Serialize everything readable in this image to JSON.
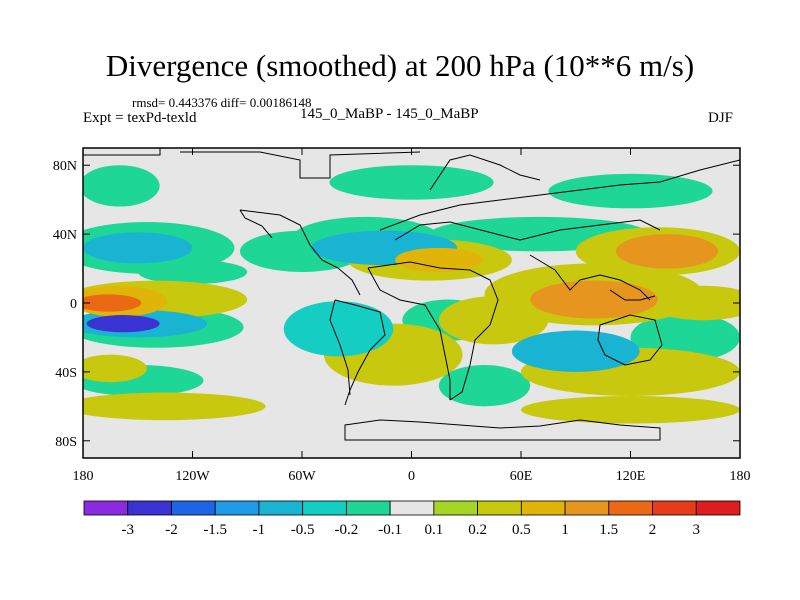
{
  "header": {
    "title": "Divergence (smoothed) at 200 hPa (10**6 m/s)",
    "rmsd_line": "rmsd= 0.443376 diff= 0.00186148",
    "expt_line": "Expt = texPd-texld",
    "experiment_names": "145_0_MaBP - 145_0_MaBP",
    "season": "DJF"
  },
  "chart_data": {
    "type": "heatmap",
    "title": "Divergence (smoothed) at 200 hPa (10**6 m/s)",
    "xlabel": "",
    "ylabel": "",
    "xlim": [
      -180,
      180
    ],
    "ylim": [
      -90,
      90
    ],
    "x_ticks": [
      {
        "value": -180,
        "label": "180"
      },
      {
        "value": -120,
        "label": "120W"
      },
      {
        "value": -60,
        "label": "60W"
      },
      {
        "value": 0,
        "label": "0"
      },
      {
        "value": 60,
        "label": "60E"
      },
      {
        "value": 120,
        "label": "120E"
      },
      {
        "value": 180,
        "label": "180"
      }
    ],
    "y_ticks": [
      {
        "value": 80,
        "label": "80N"
      },
      {
        "value": 40,
        "label": "40N"
      },
      {
        "value": 0,
        "label": "0"
      },
      {
        "value": -40,
        "label": "40S"
      },
      {
        "value": -80,
        "label": "80S"
      }
    ],
    "colorbar": {
      "levels": [
        "-3",
        "-2",
        "-1.5",
        "-1",
        "-0.5",
        "-0.2",
        "-0.1",
        "0.1",
        "0.2",
        "0.5",
        "1",
        "1.5",
        "2",
        "3"
      ],
      "colors": [
        "#8a2be2",
        "#3a32d2",
        "#1e64e6",
        "#1e9be6",
        "#19b4d2",
        "#14cdc3",
        "#1ed796",
        "#e6e6e6",
        "#a5d623",
        "#c8c80f",
        "#e1b40a",
        "#e6961e",
        "#eb6914",
        "#e63c19",
        "#dc1e1e"
      ]
    },
    "regions": [
      {
        "lon": -166,
        "lat": 0,
        "rx": 18,
        "ry": 5,
        "value": 1.6
      },
      {
        "lon": -160,
        "lat": 1,
        "rx": 26,
        "ry": 9,
        "value": 1.0
      },
      {
        "lon": -140,
        "lat": 2,
        "rx": 50,
        "ry": 11,
        "value": 0.3
      },
      {
        "lon": -158,
        "lat": -12,
        "rx": 20,
        "ry": 5,
        "value": -2.2
      },
      {
        "lon": -150,
        "lat": -12,
        "rx": 38,
        "ry": 8,
        "value": -0.8
      },
      {
        "lon": -140,
        "lat": -14,
        "rx": 48,
        "ry": 12,
        "value": -0.15
      },
      {
        "lon": -150,
        "lat": 32,
        "rx": 30,
        "ry": 9,
        "value": -0.9
      },
      {
        "lon": -145,
        "lat": 32,
        "rx": 48,
        "ry": 15,
        "value": -0.15
      },
      {
        "lon": -160,
        "lat": 68,
        "rx": 22,
        "ry": 12,
        "value": -0.15
      },
      {
        "lon": -165,
        "lat": -38,
        "rx": 20,
        "ry": 8,
        "value": 0.3
      },
      {
        "lon": -150,
        "lat": -45,
        "rx": 36,
        "ry": 9,
        "value": -0.15
      },
      {
        "lon": -135,
        "lat": -60,
        "rx": 55,
        "ry": 8,
        "value": 0.3
      },
      {
        "lon": -120,
        "lat": 18,
        "rx": 30,
        "ry": 7,
        "value": -0.15
      },
      {
        "lon": -60,
        "lat": 30,
        "rx": 34,
        "ry": 12,
        "value": -0.15
      },
      {
        "lon": -15,
        "lat": 32,
        "rx": 40,
        "ry": 10,
        "value": -0.8
      },
      {
        "lon": -25,
        "lat": 38,
        "rx": 40,
        "ry": 12,
        "value": -0.15
      },
      {
        "lon": 0,
        "lat": 70,
        "rx": 45,
        "ry": 10,
        "value": -0.15
      },
      {
        "lon": 10,
        "lat": 25,
        "rx": 45,
        "ry": 12,
        "value": 0.3
      },
      {
        "lon": 15,
        "lat": 25,
        "rx": 24,
        "ry": 7,
        "value": 0.8
      },
      {
        "lon": -40,
        "lat": -15,
        "rx": 30,
        "ry": 16,
        "value": -0.4
      },
      {
        "lon": -10,
        "lat": -30,
        "rx": 38,
        "ry": 18,
        "value": 0.3
      },
      {
        "lon": 20,
        "lat": -10,
        "rx": 25,
        "ry": 12,
        "value": -0.15
      },
      {
        "lon": 45,
        "lat": -10,
        "rx": 30,
        "ry": 14,
        "value": 0.3
      },
      {
        "lon": 100,
        "lat": 2,
        "rx": 35,
        "ry": 11,
        "value": 1.2
      },
      {
        "lon": 100,
        "lat": 5,
        "rx": 60,
        "ry": 18,
        "value": 0.3
      },
      {
        "lon": 140,
        "lat": 30,
        "rx": 28,
        "ry": 10,
        "value": 1.1
      },
      {
        "lon": 135,
        "lat": 30,
        "rx": 45,
        "ry": 14,
        "value": 0.3
      },
      {
        "lon": 70,
        "lat": 40,
        "rx": 60,
        "ry": 10,
        "value": -0.15
      },
      {
        "lon": 160,
        "lat": 0,
        "rx": 30,
        "ry": 10,
        "value": 0.3
      },
      {
        "lon": 150,
        "lat": -20,
        "rx": 30,
        "ry": 14,
        "value": -0.15
      },
      {
        "lon": 90,
        "lat": -28,
        "rx": 35,
        "ry": 12,
        "value": -0.8
      },
      {
        "lon": 120,
        "lat": -40,
        "rx": 60,
        "ry": 14,
        "value": 0.3
      },
      {
        "lon": 120,
        "lat": -62,
        "rx": 60,
        "ry": 8,
        "value": 0.3
      },
      {
        "lon": 40,
        "lat": -48,
        "rx": 25,
        "ry": 12,
        "value": -0.15
      },
      {
        "lon": 120,
        "lat": 65,
        "rx": 45,
        "ry": 10,
        "value": -0.15
      }
    ]
  }
}
